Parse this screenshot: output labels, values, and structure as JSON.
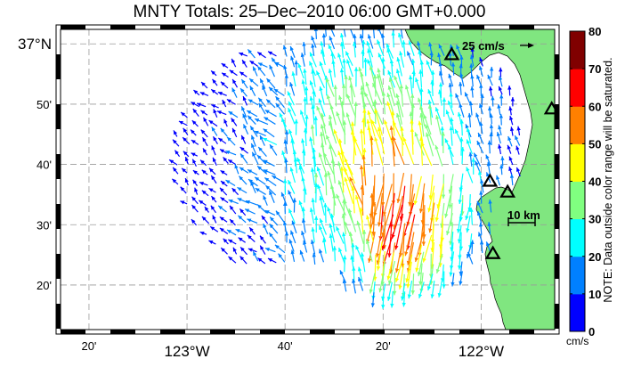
{
  "title": "MNTY Totals: 25–Dec–2010 06:00 GMT+0.000",
  "scale_arrow": {
    "label": "25 cm/s",
    "speed": 25
  },
  "scale_bar": {
    "label": "10 km"
  },
  "note": "NOTE: Data outside color range will be saturated.",
  "colorbar": {
    "unit": "cm/s",
    "ticks": [
      "0",
      "10",
      "20",
      "30",
      "40",
      "50",
      "60",
      "70",
      "80"
    ],
    "colors": [
      "#0000ff",
      "#0080ff",
      "#00ffff",
      "#80ff80",
      "#ffff00",
      "#ff8000",
      "#ff0000",
      "#800000"
    ]
  },
  "axes": {
    "x_ticks": [
      {
        "lon": -123.3333,
        "label": "20'",
        "major": false
      },
      {
        "lon": -123.0,
        "label": "123°W",
        "major": true
      },
      {
        "lon": -122.6667,
        "label": "40'",
        "major": false
      },
      {
        "lon": -122.3333,
        "label": "20'",
        "major": false
      },
      {
        "lon": -122.0,
        "label": "122°W",
        "major": true
      }
    ],
    "y_ticks": [
      {
        "lat": 37.0,
        "label": "37°N",
        "major": true
      },
      {
        "lat": 36.8333,
        "label": "50'",
        "major": false
      },
      {
        "lat": 36.6667,
        "label": "40'",
        "major": false
      },
      {
        "lat": 36.5,
        "label": "30'",
        "major": false
      },
      {
        "lat": 36.3333,
        "label": "20'",
        "major": false
      }
    ],
    "lon_range": [
      -123.43,
      -121.75
    ],
    "lat_range": [
      36.21,
      37.04
    ]
  },
  "land_color": "#80e680",
  "radar_sites": [
    {
      "lon": -122.1,
      "lat": 36.97
    },
    {
      "lon": -121.76,
      "lat": 36.82
    },
    {
      "lon": -121.97,
      "lat": 36.62
    },
    {
      "lon": -121.91,
      "lat": 36.59
    },
    {
      "lon": -121.96,
      "lat": 36.42
    }
  ]
}
